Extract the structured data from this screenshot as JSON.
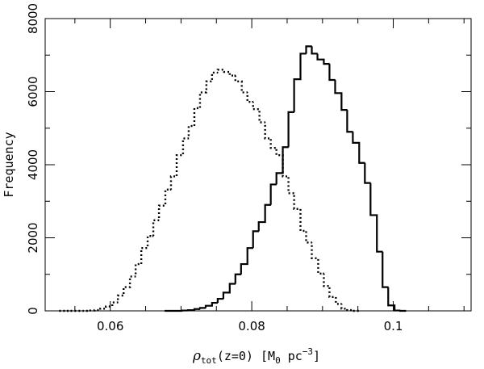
{
  "chart_data": {
    "type": "histogram",
    "xlabel": {
      "symbol": "ρ",
      "subscript": "tot",
      "middle": "(z=0) [M",
      "unit_sub": "0",
      "unit_mid": " pc",
      "unit_sup": "−3",
      "end": "]"
    },
    "ylabel": "Frequency",
    "xlim": [
      0.0508,
      0.111
    ],
    "ylim": [
      0,
      8000
    ],
    "x_ticks": [
      {
        "value": 0.06,
        "label": "0.06"
      },
      {
        "value": 0.08,
        "label": "0.08"
      },
      {
        "value": 0.1,
        "label": "0.1"
      }
    ],
    "y_ticks": [
      {
        "value": 0,
        "label": "0"
      },
      {
        "value": 2000,
        "label": "2000"
      },
      {
        "value": 4000,
        "label": "4000"
      },
      {
        "value": 6000,
        "label": "6000"
      },
      {
        "value": 8000,
        "label": "8000"
      }
    ],
    "series": [
      {
        "style": "dotted",
        "bin_width": 0.00083,
        "bins": [
          [
            0.0532,
            0
          ],
          [
            0.054,
            0
          ],
          [
            0.0548,
            0
          ],
          [
            0.0557,
            0
          ],
          [
            0.0565,
            0
          ],
          [
            0.0573,
            10
          ],
          [
            0.0582,
            20
          ],
          [
            0.059,
            60
          ],
          [
            0.0598,
            120
          ],
          [
            0.0607,
            230
          ],
          [
            0.0615,
            420
          ],
          [
            0.0623,
            650
          ],
          [
            0.0632,
            940
          ],
          [
            0.064,
            1280
          ],
          [
            0.0648,
            1720
          ],
          [
            0.0657,
            2050
          ],
          [
            0.0665,
            2480
          ],
          [
            0.0673,
            2880
          ],
          [
            0.0682,
            3320
          ],
          [
            0.069,
            3680
          ],
          [
            0.0698,
            4260
          ],
          [
            0.0707,
            4720
          ],
          [
            0.0715,
            5060
          ],
          [
            0.0723,
            5550
          ],
          [
            0.0731,
            5980
          ],
          [
            0.074,
            6280
          ],
          [
            0.0748,
            6520
          ],
          [
            0.0756,
            6600
          ],
          [
            0.0765,
            6540
          ],
          [
            0.0773,
            6440
          ],
          [
            0.0781,
            6280
          ],
          [
            0.079,
            5980
          ],
          [
            0.0798,
            5720
          ],
          [
            0.0806,
            5520
          ],
          [
            0.0815,
            5160
          ],
          [
            0.0823,
            4720
          ],
          [
            0.0831,
            4460
          ],
          [
            0.0839,
            4260
          ],
          [
            0.0848,
            3680
          ],
          [
            0.0856,
            3220
          ],
          [
            0.0864,
            2790
          ],
          [
            0.0873,
            2190
          ],
          [
            0.0881,
            1870
          ],
          [
            0.0889,
            1440
          ],
          [
            0.0898,
            1020
          ],
          [
            0.0906,
            680
          ],
          [
            0.0914,
            380
          ],
          [
            0.0923,
            190
          ],
          [
            0.0931,
            60
          ],
          [
            0.0939,
            20
          ],
          [
            0.0947,
            0
          ]
        ]
      },
      {
        "style": "solid",
        "bin_width": 0.00083,
        "bins": [
          [
            0.0681,
            0
          ],
          [
            0.0689,
            0
          ],
          [
            0.0698,
            0
          ],
          [
            0.0706,
            10
          ],
          [
            0.0714,
            20
          ],
          [
            0.0723,
            50
          ],
          [
            0.0731,
            80
          ],
          [
            0.0739,
            140
          ],
          [
            0.0748,
            220
          ],
          [
            0.0756,
            330
          ],
          [
            0.0764,
            500
          ],
          [
            0.0773,
            740
          ],
          [
            0.0781,
            1000
          ],
          [
            0.0789,
            1280
          ],
          [
            0.0798,
            1720
          ],
          [
            0.0806,
            2180
          ],
          [
            0.0814,
            2430
          ],
          [
            0.0823,
            2900
          ],
          [
            0.0831,
            3460
          ],
          [
            0.0839,
            3770
          ],
          [
            0.0848,
            4480
          ],
          [
            0.0856,
            5440
          ],
          [
            0.0864,
            6340
          ],
          [
            0.0873,
            7040
          ],
          [
            0.0881,
            7240
          ],
          [
            0.0889,
            7040
          ],
          [
            0.0897,
            6880
          ],
          [
            0.0906,
            6760
          ],
          [
            0.0914,
            6320
          ],
          [
            0.0922,
            5960
          ],
          [
            0.0931,
            5500
          ],
          [
            0.0939,
            4900
          ],
          [
            0.0947,
            4600
          ],
          [
            0.0956,
            4050
          ],
          [
            0.0964,
            3500
          ],
          [
            0.0972,
            2620
          ],
          [
            0.0981,
            1620
          ],
          [
            0.0989,
            650
          ],
          [
            0.0997,
            150
          ],
          [
            0.1006,
            10
          ],
          [
            0.1014,
            0
          ]
        ]
      }
    ]
  }
}
